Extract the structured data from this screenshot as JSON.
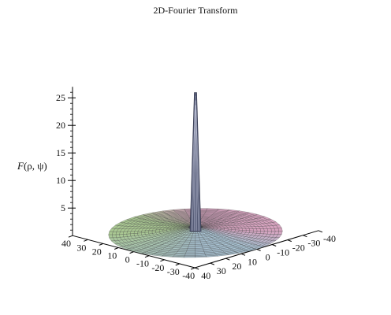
{
  "chart_data": {
    "type": "surface3d",
    "title": "2D-Fourier Transform",
    "zlabel_func": "F",
    "zlabel_args": "(ρ, ψ)",
    "zticks": [
      5,
      10,
      15,
      20,
      25
    ],
    "zlim": [
      0,
      25
    ],
    "x_ticks": [
      -40,
      -30,
      -20,
      -10,
      0,
      10,
      20,
      30,
      40
    ],
    "y_ticks": [
      -40,
      -30,
      -20,
      -10,
      0,
      10,
      20,
      30,
      40
    ],
    "x_range": [
      -40,
      40
    ],
    "y_range": [
      -40,
      40
    ],
    "disc_radius": 40,
    "peak_value": 25.5,
    "grid": true,
    "colors": {
      "surface_green": "#a9c792",
      "surface_pink": "#d6a3bf",
      "surface_blue": "#a9c3d3",
      "mesh": "#3c3c3c",
      "peak": "#545a75"
    }
  }
}
